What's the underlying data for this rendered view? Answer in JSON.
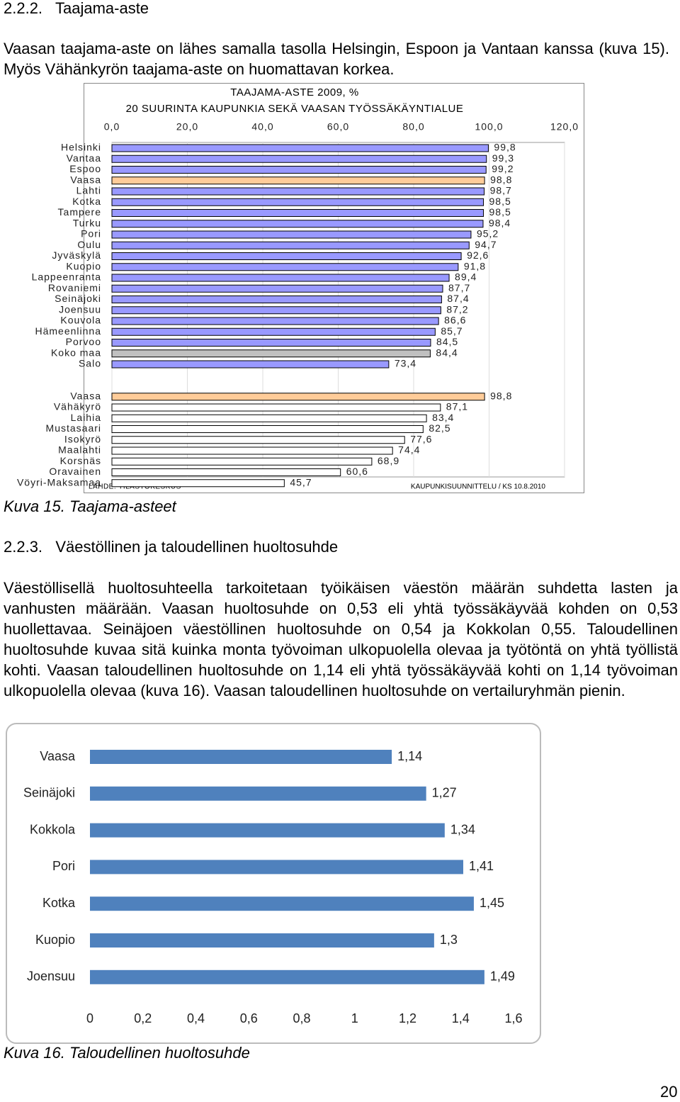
{
  "heading1": "2.2.2.   Taajama-aste",
  "para1": "Vaasan taajama-aste on lähes samalla tasolla Helsingin, Espoon ja Vantaan kanssa (kuva 15). Myös Vähänkyrön taajama-aste on huomattavan korkea.",
  "chart_data": [
    {
      "type": "bar",
      "orientation": "horizontal",
      "title": "TAAJAMA-ASTE 2009, %",
      "subtitle": "20 SUURINTA KAUPUNKIA SEKÄ VAASAN TYÖSSÄKÄYNTIALUE",
      "source": "LÄHDE: TILASTOKESKUS",
      "note": "KAUPUNKISUUNNITTELU / KS 10.8.2010",
      "categories": [
        "Helsinki",
        "Vantaa",
        "Espoo",
        "Vaasa",
        "Lahti",
        "Kotka",
        "Tampere",
        "Turku",
        "Pori",
        "Oulu",
        "Jyväskylä",
        "Kuopio",
        "Lappeenranta",
        "Rovaniemi",
        "Seinäjoki",
        "Joensuu",
        "Kouvola",
        "Hämeenlinna",
        "Porvoo",
        "Koko maa",
        "Salo",
        null,
        "Vaasa",
        "Vähäkyrö",
        "Laihia",
        "Mustasaari",
        "Isokyrö",
        "Maalahti",
        "Korsnäs",
        "Oravainen",
        "Vöyri-Maksamaa"
      ],
      "values": [
        99.8,
        99.3,
        99.2,
        98.8,
        98.7,
        98.5,
        98.5,
        98.4,
        95.2,
        94.7,
        92.6,
        91.8,
        89.4,
        87.7,
        87.4,
        87.2,
        86.6,
        85.7,
        84.5,
        84.4,
        73.4,
        null,
        98.8,
        87.1,
        83.4,
        82.5,
        77.6,
        74.4,
        68.9,
        60.6,
        45.7
      ],
      "value_labels": [
        "99,8",
        "99,3",
        "99,2",
        "98,8",
        "98,7",
        "98,5",
        "98,5",
        "98,4",
        "95,2",
        "94,7",
        "92,6",
        "91,8",
        "89,4",
        "87,7",
        "87,4",
        "87,2",
        "86,6",
        "85,7",
        "84,5",
        "84,4",
        "73,4",
        null,
        "98,8",
        "87,1",
        "83,4",
        "82,5",
        "77,6",
        "74,4",
        "68,9",
        "60,6",
        "45,7"
      ],
      "colors": [
        "#9999ff",
        "#9999ff",
        "#9999ff",
        "#ffcc99",
        "#9999ff",
        "#9999ff",
        "#9999ff",
        "#9999ff",
        "#9999ff",
        "#9999ff",
        "#9999ff",
        "#9999ff",
        "#9999ff",
        "#9999ff",
        "#9999ff",
        "#9999ff",
        "#9999ff",
        "#9999ff",
        "#9999ff",
        "#c0c0c0",
        "#9999ff",
        null,
        "#ffcc99",
        "#ffffff",
        "#ffffff",
        "#ffffff",
        "#ffffff",
        "#ffffff",
        "#ffffff",
        "#ffffff",
        "#ffffff"
      ],
      "xlim": [
        0,
        120
      ],
      "xticks": [
        {
          "value": 0,
          "label": "0,0"
        },
        {
          "value": 20,
          "label": "20,0"
        },
        {
          "value": 40,
          "label": "40,0"
        },
        {
          "value": 60,
          "label": "60,0"
        },
        {
          "value": 80,
          "label": "80,0"
        },
        {
          "value": 100,
          "label": "100,0"
        },
        {
          "value": 120,
          "label": "120,0"
        }
      ],
      "grid": true
    },
    {
      "type": "bar",
      "orientation": "horizontal",
      "categories": [
        "Vaasa",
        "Seinäjoki",
        "Kokkola",
        "Pori",
        "Kotka",
        "Kuopio",
        "Joensuu"
      ],
      "values": [
        1.14,
        1.27,
        1.34,
        1.41,
        1.45,
        1.3,
        1.49
      ],
      "value_labels": [
        "1,14",
        "1,27",
        "1,34",
        "1,41",
        "1,45",
        "1,3",
        "1,49"
      ],
      "color": "#4f81bd",
      "xlim": [
        0,
        1.6
      ],
      "xticks": [
        0,
        {
          "value": 0.2,
          "label": "0,2"
        },
        {
          "value": 0.4,
          "label": "0,4"
        },
        {
          "value": 0.6,
          "label": "0,6"
        },
        {
          "value": 0.8,
          "label": "0,8"
        },
        1,
        {
          "value": 1.2,
          "label": "1,2"
        },
        {
          "value": 1.4,
          "label": "1,4"
        },
        {
          "value": 1.6,
          "label": "1,6"
        }
      ],
      "grid": false
    }
  ],
  "caption1": "Kuva 15. Taajama-asteet",
  "heading2": "2.2.3.   Väestöllinen ja taloudellinen huoltosuhde",
  "para2": "Väestöllisellä huoltosuhteella tarkoitetaan työikäisen väestön määrän suhdetta lasten ja vanhusten määrään. Vaasan huoltosuhde on 0,53 eli yhtä työssäkäyvää kohden on 0,53 huollettavaa. Seinäjoen väestöllinen huoltosuhde on 0,54 ja Kokkolan 0,55. Taloudellinen huoltosuhde kuvaa sitä kuinka monta työvoiman ulkopuolella olevaa ja työtöntä on yhtä työllistä kohti. Vaasan taloudellinen huoltosuhde on 1,14 eli yhtä työssäkäyvää kohti on 1,14 työvoiman ulkopuolella olevaa (kuva 16). Vaasan taloudellinen huoltosuhde on vertailuryhmän pienin.",
  "caption2": "Kuva 16. Taloudellinen huoltosuhde",
  "page_number": 20
}
